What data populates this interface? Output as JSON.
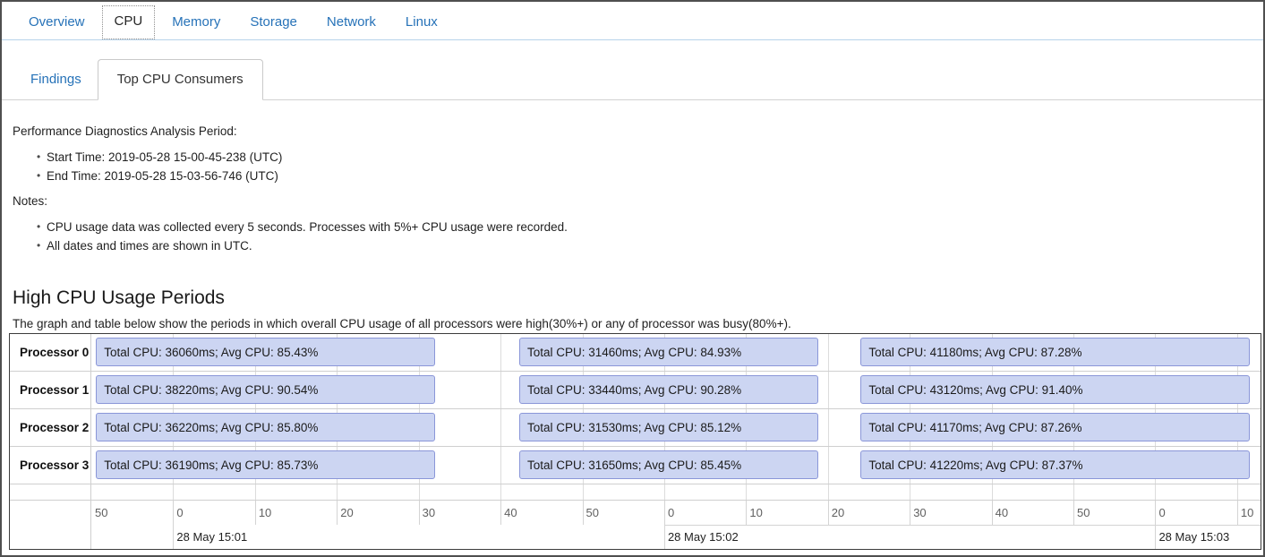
{
  "main_tabs": {
    "items": [
      {
        "label": "Overview",
        "selected": false
      },
      {
        "label": "CPU",
        "selected": true
      },
      {
        "label": "Memory",
        "selected": false
      },
      {
        "label": "Storage",
        "selected": false
      },
      {
        "label": "Network",
        "selected": false
      },
      {
        "label": "Linux",
        "selected": false
      }
    ]
  },
  "sub_tabs": {
    "items": [
      {
        "label": "Findings",
        "selected": false
      },
      {
        "label": "Top CPU Consumers",
        "selected": true
      }
    ]
  },
  "period": {
    "heading": "Performance Diagnostics Analysis Period:",
    "start_time": "Start Time: 2019-05-28 15-00-45-238 (UTC)",
    "end_time": "End Time: 2019-05-28 15-03-56-746 (UTC)"
  },
  "notes": {
    "heading": "Notes:",
    "note_interval": "CPU usage data was collected every 5 seconds. Processes with 5%+ CPU usage were recorded.",
    "note_utc": "All dates and times are shown in UTC."
  },
  "section": {
    "title": "High CPU Usage Periods",
    "description": "The graph and table below show the periods in which overall CPU usage of all processors were high(30%+) or any of processor was busy(80%+)."
  },
  "chart_data": {
    "type": "bar",
    "subtype": "gantt-timeline",
    "title": "High CPU Usage Periods",
    "colors": {
      "bar_fill": "#ccd5f2",
      "bar_border": "#8a96d8",
      "gridline": "#dcdcdc"
    },
    "x_axis": {
      "unit": "seconds",
      "separator_from_pct": 49,
      "ticks": [
        {
          "label": "50",
          "pct": 0
        },
        {
          "label": "0",
          "pct": 7,
          "date": "28 May 15:01"
        },
        {
          "label": "10",
          "pct": 14
        },
        {
          "label": "20",
          "pct": 21
        },
        {
          "label": "30",
          "pct": 28
        },
        {
          "label": "40",
          "pct": 35
        },
        {
          "label": "50",
          "pct": 42
        },
        {
          "label": "0",
          "pct": 49,
          "date": "28 May 15:02"
        },
        {
          "label": "10",
          "pct": 56
        },
        {
          "label": "20",
          "pct": 63
        },
        {
          "label": "30",
          "pct": 70
        },
        {
          "label": "40",
          "pct": 77
        },
        {
          "label": "50",
          "pct": 84
        },
        {
          "label": "0",
          "pct": 91,
          "date": "28 May 15:03"
        },
        {
          "label": "10",
          "pct": 98
        }
      ]
    },
    "rows": [
      {
        "label": "Processor 0",
        "bars": [
          {
            "text": "Total CPU: 36060ms; Avg CPU: 85.43%",
            "total_cpu_ms": 36060,
            "avg_cpu_pct": 85.43,
            "start_pct": 0.4,
            "width_pct": 29.0
          },
          {
            "text": "Total CPU: 31460ms; Avg CPU: 84.93%",
            "total_cpu_ms": 31460,
            "avg_cpu_pct": 84.93,
            "start_pct": 36.6,
            "width_pct": 25.6
          },
          {
            "text": "Total CPU: 41180ms; Avg CPU: 87.28%",
            "total_cpu_ms": 41180,
            "avg_cpu_pct": 87.28,
            "start_pct": 65.8,
            "width_pct": 33.3
          }
        ]
      },
      {
        "label": "Processor 1",
        "bars": [
          {
            "text": "Total CPU: 38220ms; Avg CPU: 90.54%",
            "total_cpu_ms": 38220,
            "avg_cpu_pct": 90.54,
            "start_pct": 0.4,
            "width_pct": 29.0
          },
          {
            "text": "Total CPU: 33440ms; Avg CPU: 90.28%",
            "total_cpu_ms": 33440,
            "avg_cpu_pct": 90.28,
            "start_pct": 36.6,
            "width_pct": 25.6
          },
          {
            "text": "Total CPU: 43120ms; Avg CPU: 91.40%",
            "total_cpu_ms": 43120,
            "avg_cpu_pct": 91.4,
            "start_pct": 65.8,
            "width_pct": 33.3
          }
        ]
      },
      {
        "label": "Processor 2",
        "bars": [
          {
            "text": "Total CPU: 36220ms; Avg CPU: 85.80%",
            "total_cpu_ms": 36220,
            "avg_cpu_pct": 85.8,
            "start_pct": 0.4,
            "width_pct": 29.0
          },
          {
            "text": "Total CPU: 31530ms; Avg CPU: 85.12%",
            "total_cpu_ms": 31530,
            "avg_cpu_pct": 85.12,
            "start_pct": 36.6,
            "width_pct": 25.6
          },
          {
            "text": "Total CPU: 41170ms; Avg CPU: 87.26%",
            "total_cpu_ms": 41170,
            "avg_cpu_pct": 87.26,
            "start_pct": 65.8,
            "width_pct": 33.3
          }
        ]
      },
      {
        "label": "Processor 3",
        "bars": [
          {
            "text": "Total CPU: 36190ms; Avg CPU: 85.73%",
            "total_cpu_ms": 36190,
            "avg_cpu_pct": 85.73,
            "start_pct": 0.4,
            "width_pct": 29.0
          },
          {
            "text": "Total CPU: 31650ms; Avg CPU: 85.45%",
            "total_cpu_ms": 31650,
            "avg_cpu_pct": 85.45,
            "start_pct": 36.6,
            "width_pct": 25.6
          },
          {
            "text": "Total CPU: 41220ms; Avg CPU: 87.37%",
            "total_cpu_ms": 41220,
            "avg_cpu_pct": 87.37,
            "start_pct": 65.8,
            "width_pct": 33.3
          }
        ]
      }
    ]
  }
}
